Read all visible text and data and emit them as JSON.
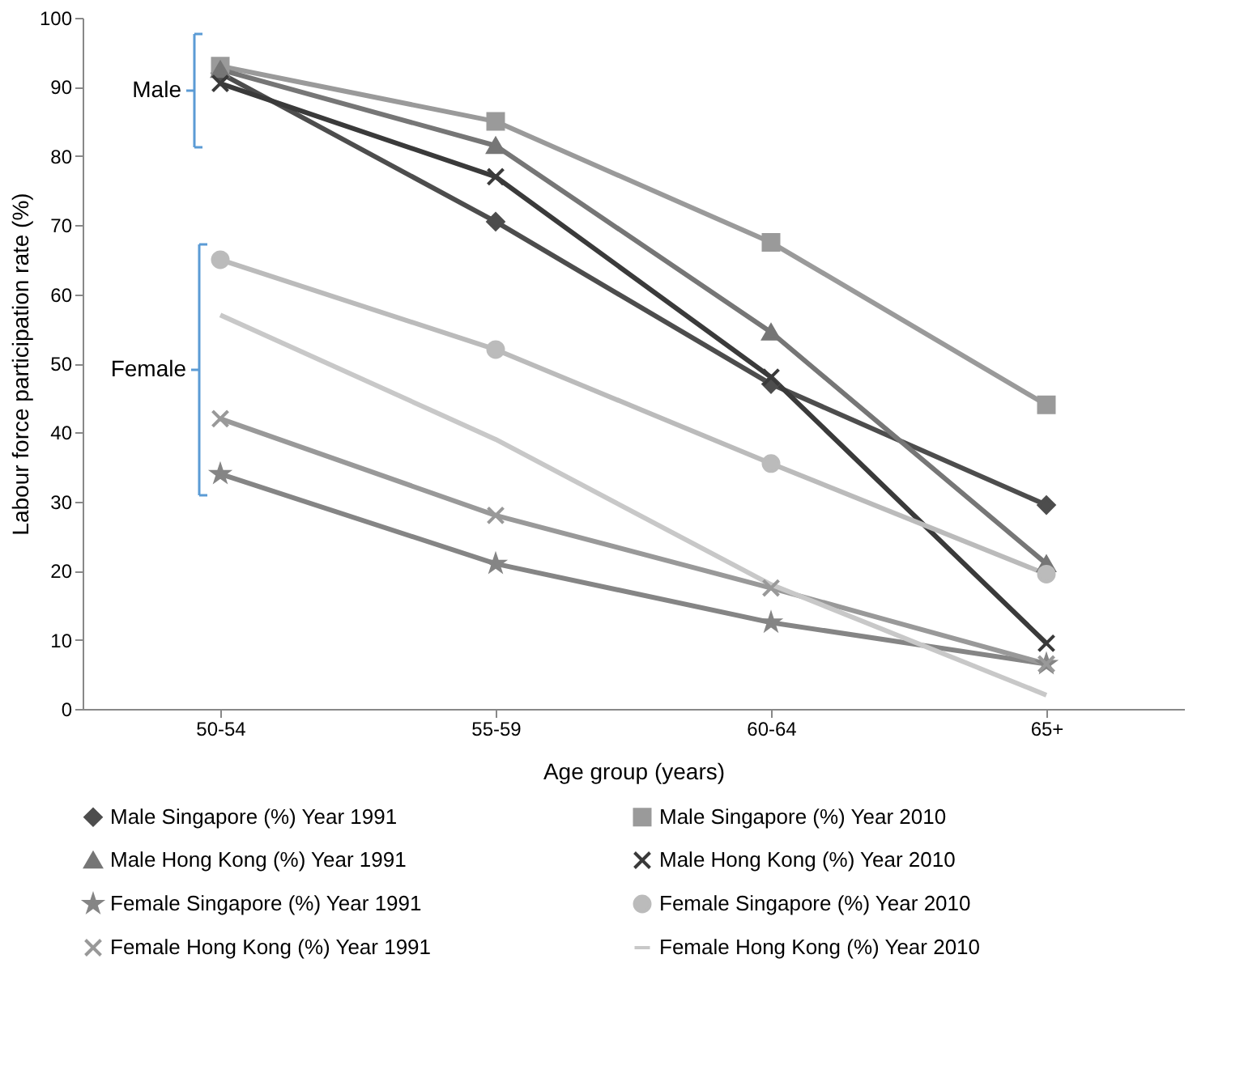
{
  "chart_data": {
    "type": "line",
    "xlabel": "Age group (years)",
    "ylabel": "Labour force participation rate (%)",
    "categories": [
      "50-54",
      "55-59",
      "60-64",
      "65+"
    ],
    "ylim": [
      0,
      100
    ],
    "yticks": [
      0,
      10,
      20,
      30,
      40,
      50,
      60,
      70,
      80,
      90,
      100
    ],
    "grid": false,
    "legend": "bottom",
    "annotations": [
      "Male",
      "Female"
    ],
    "series": [
      {
        "name": "Male Singapore (%) Year 1991",
        "color": "#4d4d4d",
        "marker": "diamond",
        "values": [
          92,
          70.5,
          47,
          29.5
        ]
      },
      {
        "name": "Male Singapore (%) Year 2010",
        "color": "#9a9a9a",
        "marker": "square",
        "values": [
          93,
          85,
          67.5,
          44
        ]
      },
      {
        "name": "Male Hong Kong (%) Year 1991",
        "color": "#767676",
        "marker": "triangle",
        "values": [
          92.5,
          81.5,
          54.5,
          21
        ]
      },
      {
        "name": "Male Hong Kong (%) Year 2010",
        "color": "#3a3a3a",
        "marker": "cross",
        "values": [
          90.5,
          77,
          48,
          9.5
        ]
      },
      {
        "name": "Female Singapore (%) Year 1991",
        "color": "#858585",
        "marker": "star",
        "values": [
          34,
          21,
          12.5,
          6.5
        ]
      },
      {
        "name": "Female Singapore (%) Year 2010",
        "color": "#bbbbbb",
        "marker": "circle",
        "values": [
          65,
          52,
          35.5,
          19.5
        ]
      },
      {
        "name": "Female Hong Kong (%) Year 1991",
        "color": "#999999",
        "marker": "cross",
        "values": [
          42,
          28,
          17.5,
          6.5
        ]
      },
      {
        "name": "Female Hong Kong (%) Year 2010",
        "color": "#c8c8c8",
        "marker": "none",
        "values": [
          57,
          39,
          18,
          2
        ]
      }
    ]
  }
}
